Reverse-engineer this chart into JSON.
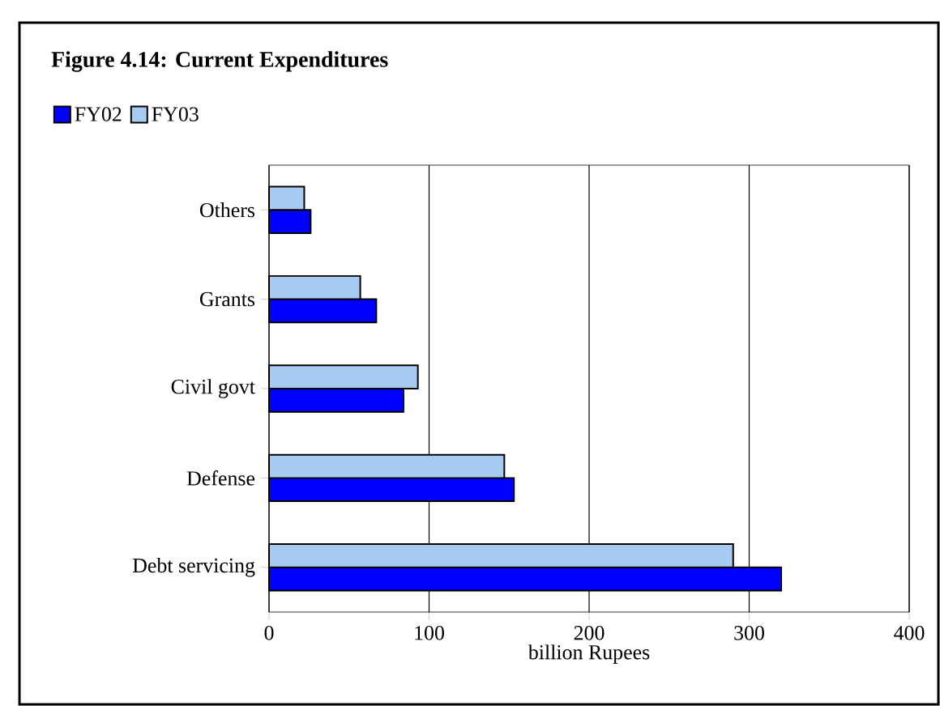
{
  "chart_data": {
    "type": "bar",
    "orientation": "horizontal",
    "title": "Figure 4.14: Current Expenditures",
    "xlabel": "billion Rupees",
    "categories": [
      "Others",
      "Grants",
      "Civil govt",
      "Defense",
      "Debt servicing"
    ],
    "series": [
      {
        "name": "FY02",
        "color": "#0000ff",
        "values": [
          26,
          67,
          84,
          153,
          320
        ]
      },
      {
        "name": "FY03",
        "color": "#a6caf0",
        "values": [
          22,
          57,
          93,
          147,
          290
        ]
      }
    ],
    "xlim": [
      0,
      400
    ],
    "xticks": [
      0,
      100,
      200,
      300,
      400
    ],
    "grid": "x",
    "legend": "top left"
  }
}
